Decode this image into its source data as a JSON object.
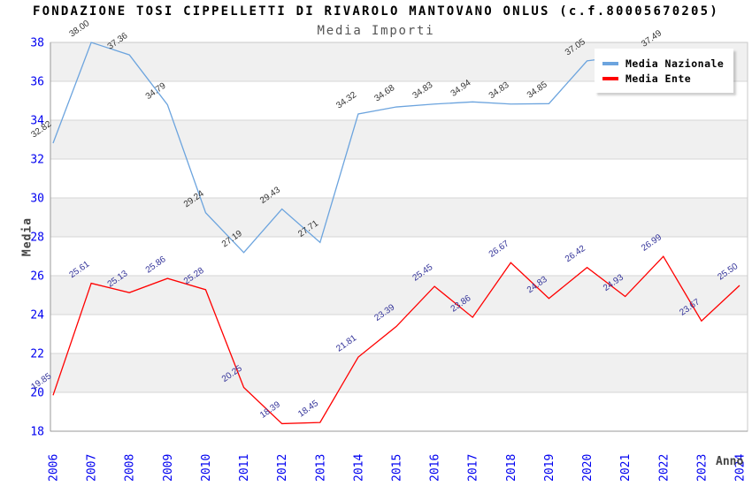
{
  "chart_data": {
    "type": "line",
    "title": "FONDAZIONE TOSI CIPPELLETTI DI RIVAROLO MANTOVANO ONLUS (c.f.80005670205)",
    "subtitle": "Media Importi",
    "xlabel": "Anno",
    "ylabel": "Media",
    "ylim": [
      18,
      38
    ],
    "ytick_step": 2,
    "grid": "alternating-horizontal-bands",
    "legend_position": "top-right",
    "categories": [
      "2006",
      "2007",
      "2008",
      "2009",
      "2010",
      "2011",
      "2012",
      "2013",
      "2014",
      "2015",
      "2016",
      "2017",
      "2018",
      "2019",
      "2020",
      "2021",
      "2022",
      "2023",
      "2024"
    ],
    "series": [
      {
        "name": "Media Nazionale",
        "color": "#6CA4DE",
        "label_color": "#333333",
        "values": [
          32.82,
          38.0,
          37.36,
          34.79,
          29.24,
          27.19,
          29.43,
          27.71,
          34.32,
          34.68,
          34.83,
          34.94,
          34.83,
          34.85,
          37.05,
          37.3,
          37.49,
          null,
          null
        ],
        "labels": [
          "32.82",
          "38.00",
          "37.36",
          "34.79",
          "29.24",
          "27.19",
          "29.43",
          "27.71",
          "34.32",
          "34.68",
          "34.83",
          "34.94",
          "34.83",
          "34.85",
          "37.05",
          null,
          "37.49",
          null,
          null
        ]
      },
      {
        "name": "Media Ente",
        "color": "#FF0000",
        "label_color": "#333399",
        "values": [
          19.85,
          25.61,
          25.13,
          25.86,
          25.28,
          20.25,
          18.39,
          18.45,
          21.81,
          23.39,
          25.45,
          23.86,
          26.67,
          24.83,
          26.42,
          24.93,
          26.99,
          23.67,
          25.5
        ],
        "labels": [
          "19.85",
          "25.61",
          "25.13",
          "25.86",
          "25.28",
          "20.25",
          "18.39",
          "18.45",
          "21.81",
          "23.39",
          "25.45",
          "23.86",
          "26.67",
          "24.83",
          "26.42",
          "24.93",
          "26.99",
          "23.67",
          "25.50"
        ]
      }
    ],
    "colors": {
      "band": "#F0F0F0",
      "gridline": "#D6D6D6",
      "plot_border": "#C9C9C9",
      "axis_line": "#999999",
      "tick_label": "#0000F0"
    }
  }
}
